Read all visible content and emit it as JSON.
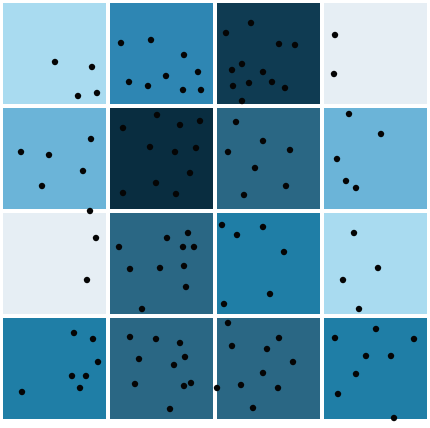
{
  "board": {
    "rows": 4,
    "cols": 4,
    "palette": {
      "c0": "#e6eef4",
      "c1": "#a9dbf0",
      "c2": "#6bb4d8",
      "c3": "#2e86b3",
      "c4": "#1f7ea6",
      "c5": "#2a6784",
      "c6": "#0f3b52",
      "c7": "#092d40"
    },
    "tiles": [
      {
        "row": 0,
        "col": 0,
        "color": "#a9dbf0",
        "dots": 4
      },
      {
        "row": 0,
        "col": 1,
        "color": "#2e86b3",
        "dots": 9
      },
      {
        "row": 0,
        "col": 2,
        "color": "#0f3b52",
        "dots": 12
      },
      {
        "row": 0,
        "col": 3,
        "color": "#e6eef4",
        "dots": 2
      },
      {
        "row": 1,
        "col": 0,
        "color": "#6bb4d8",
        "dots": 5
      },
      {
        "row": 1,
        "col": 1,
        "color": "#092d40",
        "dots": 11
      },
      {
        "row": 1,
        "col": 2,
        "color": "#2a6784",
        "dots": 7
      },
      {
        "row": 1,
        "col": 3,
        "color": "#6bb4d8",
        "dots": 5
      },
      {
        "row": 2,
        "col": 0,
        "color": "#e6eef4",
        "dots": 3
      },
      {
        "row": 2,
        "col": 1,
        "color": "#2a6784",
        "dots": 10
      },
      {
        "row": 2,
        "col": 2,
        "color": "#1f7ea6",
        "dots": 6
      },
      {
        "row": 2,
        "col": 3,
        "color": "#a9dbf0",
        "dots": 4
      },
      {
        "row": 3,
        "col": 0,
        "color": "#1f7ea6",
        "dots": 7
      },
      {
        "row": 3,
        "col": 1,
        "color": "#2a6784",
        "dots": 10
      },
      {
        "row": 3,
        "col": 2,
        "color": "#2a6784",
        "dots": 10
      },
      {
        "row": 3,
        "col": 3,
        "color": "#1f7ea6",
        "dots": 8
      }
    ]
  }
}
